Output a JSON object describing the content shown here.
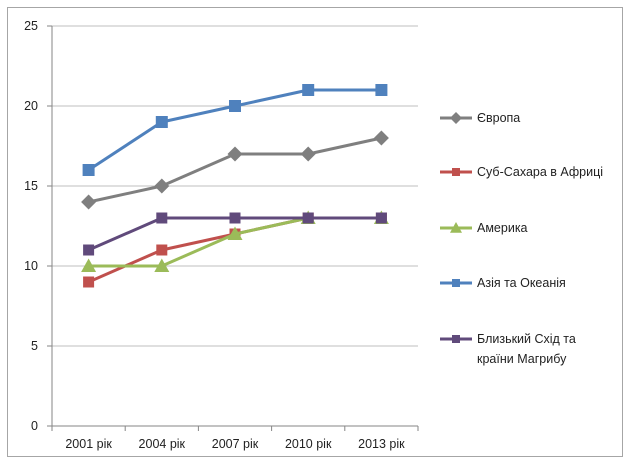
{
  "chart_data": {
    "type": "line",
    "categories": [
      "2001 рік",
      "2004 рік",
      "2007 рік",
      "2010 рік",
      "2013 рік"
    ],
    "ylim": [
      0,
      25
    ],
    "yticks": [
      0,
      5,
      10,
      15,
      20,
      25
    ],
    "grid": true,
    "legend_position": "right",
    "series": [
      {
        "name": "Європа",
        "color": "#7f7f7f",
        "marker": "diamond",
        "values": [
          14,
          15,
          17,
          17,
          18
        ]
      },
      {
        "name": "Суб-Сахара в Африці",
        "color": "#c0504d",
        "marker": "square",
        "values": [
          9,
          11,
          12,
          13,
          13
        ]
      },
      {
        "name": "Америка",
        "color": "#9bbb59",
        "marker": "triangle",
        "values": [
          10,
          10,
          12,
          13,
          13
        ]
      },
      {
        "name": "Азія та Океанія",
        "color": "#4f81bd",
        "marker": "square",
        "values": [
          16,
          19,
          20,
          21,
          21
        ]
      },
      {
        "name": "Близький Схід та країни Магрибу",
        "color": "#604a7b",
        "marker": "square",
        "values": [
          11,
          13,
          13,
          13,
          13
        ]
      }
    ],
    "legend_lines": [
      [
        "Європа"
      ],
      [
        "Суб-Сахара в Африці"
      ],
      [
        "Америка"
      ],
      [
        "Азія та Океанія"
      ],
      [
        "Близький Схід та",
        "країни Магрибу"
      ]
    ]
  }
}
